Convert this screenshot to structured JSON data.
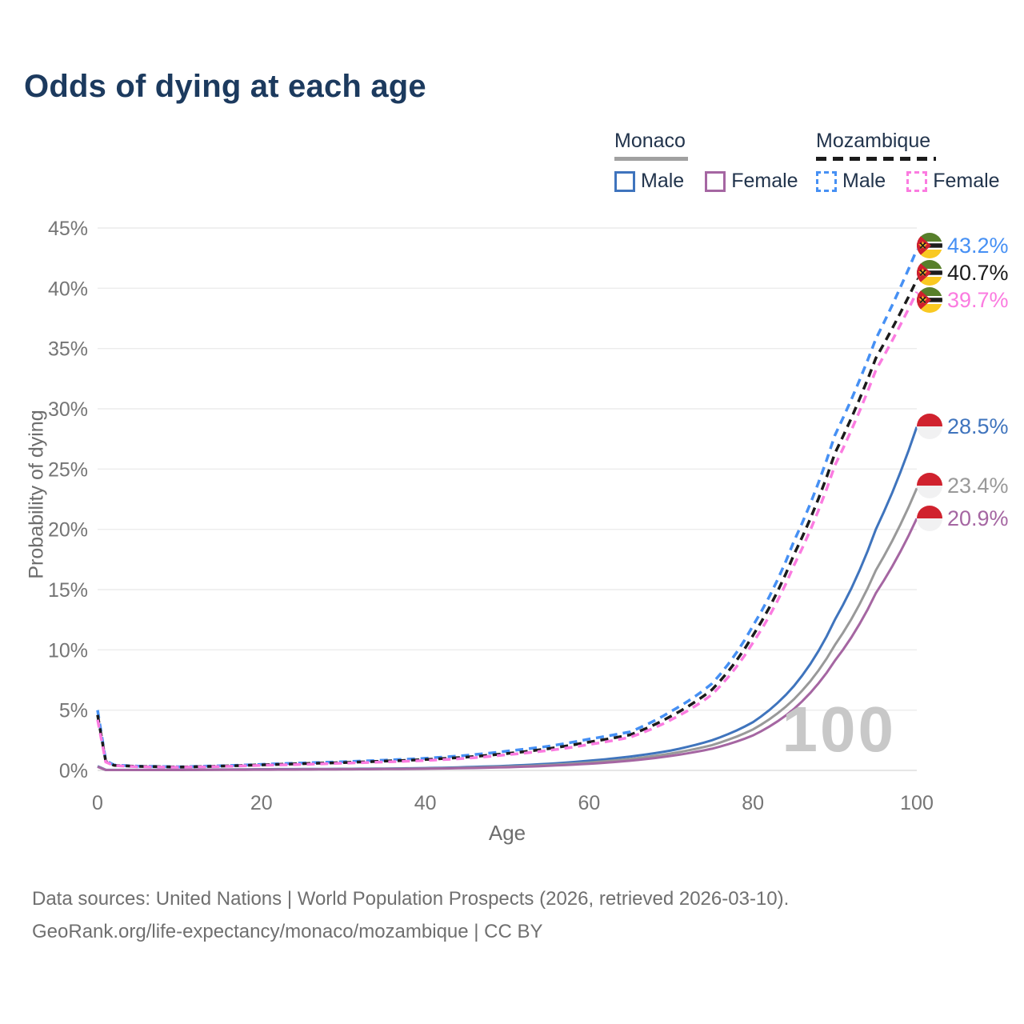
{
  "title": "Odds of dying at each age",
  "legend": {
    "groups": [
      {
        "name": "Monaco",
        "line_style": "solid",
        "underline_color": "#a0a0a0",
        "items": [
          {
            "label": "Male",
            "color": "#3f74bd"
          },
          {
            "label": "Female",
            "color": "#a566a2"
          }
        ]
      },
      {
        "name": "Mozambique",
        "line_style": "dashed",
        "underline_color": "#1b1b1b",
        "items": [
          {
            "label": "Male",
            "color": "#4690f4"
          },
          {
            "label": "Female",
            "color": "#fb7be0"
          }
        ]
      }
    ]
  },
  "chart_data": {
    "type": "line",
    "title": "Odds of dying at each age",
    "xlabel": "Age",
    "ylabel": "Probability of dying",
    "xlim": [
      0,
      100
    ],
    "ylim": [
      0,
      45
    ],
    "x_ticks": [
      0,
      20,
      40,
      60,
      80,
      100
    ],
    "y_ticks": [
      0,
      5,
      10,
      15,
      20,
      25,
      30,
      35,
      40,
      45
    ],
    "y_tick_suffix": "%",
    "grid": "horizontal",
    "watermark": "100",
    "knot_ages": [
      0,
      1,
      2,
      5,
      10,
      15,
      20,
      25,
      30,
      35,
      40,
      45,
      50,
      55,
      60,
      65,
      70,
      75,
      80,
      85,
      90,
      95,
      100
    ],
    "series": [
      {
        "name": "Mozambique Male",
        "country": "Mozambique",
        "sex": "Male",
        "color": "#4690f4",
        "dash": true,
        "flag": "mozambique",
        "end_label": "43.2%",
        "values": [
          5.0,
          0.8,
          0.45,
          0.35,
          0.3,
          0.38,
          0.5,
          0.62,
          0.72,
          0.85,
          1.0,
          1.25,
          1.6,
          2.0,
          2.6,
          3.2,
          4.9,
          7.2,
          12.0,
          19.0,
          27.8,
          35.8,
          43.2
        ]
      },
      {
        "name": "Mozambique Both sexes",
        "country": "Mozambique",
        "sex": "Both",
        "color": "#1b1b1b",
        "dash": true,
        "flag": "mozambique",
        "end_label": "40.7%",
        "values": [
          4.6,
          0.75,
          0.42,
          0.33,
          0.28,
          0.35,
          0.46,
          0.56,
          0.65,
          0.77,
          0.9,
          1.1,
          1.4,
          1.8,
          2.35,
          2.95,
          4.5,
          6.7,
          11.2,
          17.9,
          26.3,
          34.2,
          40.7
        ]
      },
      {
        "name": "Mozambique Female",
        "country": "Mozambique",
        "sex": "Female",
        "color": "#fb7be0",
        "dash": true,
        "flag": "mozambique",
        "end_label": "39.7%",
        "values": [
          4.2,
          0.7,
          0.4,
          0.3,
          0.26,
          0.32,
          0.42,
          0.5,
          0.6,
          0.7,
          0.82,
          1.0,
          1.3,
          1.65,
          2.15,
          2.75,
          4.2,
          6.3,
          10.6,
          17.0,
          25.3,
          33.2,
          39.7
        ]
      },
      {
        "name": "Monaco Male",
        "country": "Monaco",
        "sex": "Male",
        "color": "#3f74bd",
        "dash": false,
        "flag": "monaco",
        "end_label": "28.5%",
        "values": [
          0.35,
          0.05,
          0.04,
          0.04,
          0.05,
          0.07,
          0.1,
          0.11,
          0.13,
          0.15,
          0.19,
          0.27,
          0.38,
          0.55,
          0.8,
          1.15,
          1.65,
          2.5,
          4.0,
          7.0,
          12.5,
          20.0,
          28.5
        ]
      },
      {
        "name": "Monaco Both sexes",
        "country": "Monaco",
        "sex": "Both",
        "color": "#999999",
        "dash": false,
        "flag": "monaco",
        "end_label": "23.4%",
        "values": [
          0.32,
          0.04,
          0.035,
          0.035,
          0.04,
          0.06,
          0.08,
          0.09,
          0.11,
          0.13,
          0.16,
          0.22,
          0.31,
          0.45,
          0.65,
          0.95,
          1.4,
          2.1,
          3.4,
          5.9,
          10.4,
          16.6,
          23.4
        ]
      },
      {
        "name": "Monaco Female",
        "country": "Monaco",
        "sex": "Female",
        "color": "#a566a2",
        "dash": false,
        "flag": "monaco",
        "end_label": "20.9%",
        "values": [
          0.3,
          0.03,
          0.03,
          0.03,
          0.035,
          0.05,
          0.06,
          0.07,
          0.09,
          0.11,
          0.14,
          0.19,
          0.26,
          0.38,
          0.55,
          0.8,
          1.2,
          1.8,
          2.9,
          5.1,
          9.1,
          14.7,
          20.9
        ]
      }
    ]
  },
  "footer": {
    "line1": "Data sources: United Nations | World Population Prospects (2026, retrieved 2026-03-10).",
    "line2": "GeoRank.org/life-expectancy/monaco/mozambique | CC BY"
  }
}
